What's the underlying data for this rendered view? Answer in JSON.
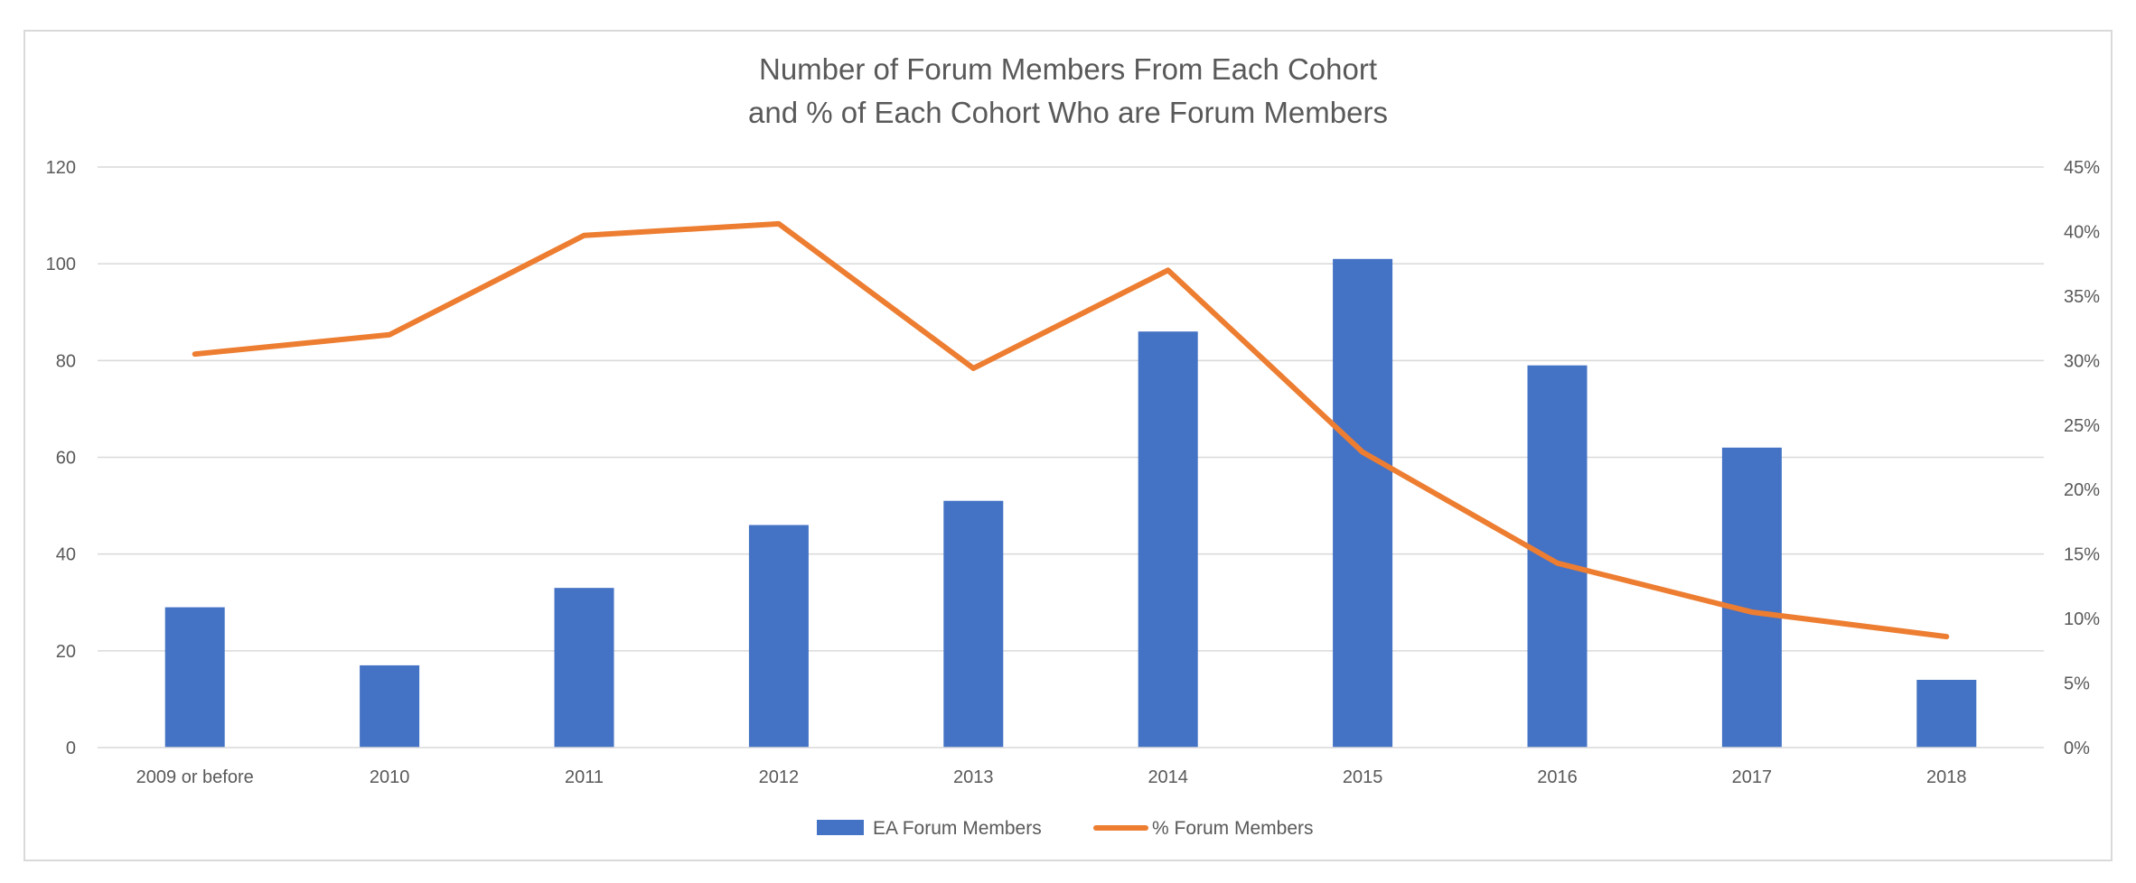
{
  "chart_data": {
    "type": "bar",
    "title": "Number of Forum Members From Each Cohort",
    "subtitle": "and % of Each Cohort Who are Forum Members",
    "categories": [
      "2009 or before",
      "2010",
      "2011",
      "2012",
      "2013",
      "2014",
      "2015",
      "2016",
      "2017",
      "2018"
    ],
    "series": [
      {
        "name": "EA Forum Members",
        "type": "bar",
        "axis": "left",
        "color": "#4472C4",
        "values": [
          29,
          17,
          33,
          46,
          51,
          86,
          101,
          79,
          62,
          14
        ]
      },
      {
        "name": "% Forum Members",
        "type": "line",
        "axis": "right",
        "color": "#ED7D31",
        "values": [
          0.305,
          0.32,
          0.397,
          0.406,
          0.294,
          0.37,
          0.229,
          0.143,
          0.105,
          0.086
        ]
      }
    ],
    "y_left": {
      "lim": [
        0,
        120
      ],
      "ticks": [
        0,
        20,
        40,
        60,
        80,
        100,
        120
      ],
      "tick_labels": [
        "0",
        "20",
        "40",
        "60",
        "80",
        "100",
        "120"
      ]
    },
    "y_right": {
      "lim": [
        0,
        0.45
      ],
      "ticks": [
        0,
        0.05,
        0.1,
        0.15,
        0.2,
        0.25,
        0.3,
        0.35,
        0.4,
        0.45
      ],
      "tick_labels": [
        "0%",
        "5%",
        "10%",
        "15%",
        "20%",
        "25%",
        "30%",
        "35%",
        "40%",
        "45%"
      ]
    },
    "xlabel": "",
    "ylabel": "",
    "grid": true,
    "legend_position": "bottom"
  }
}
